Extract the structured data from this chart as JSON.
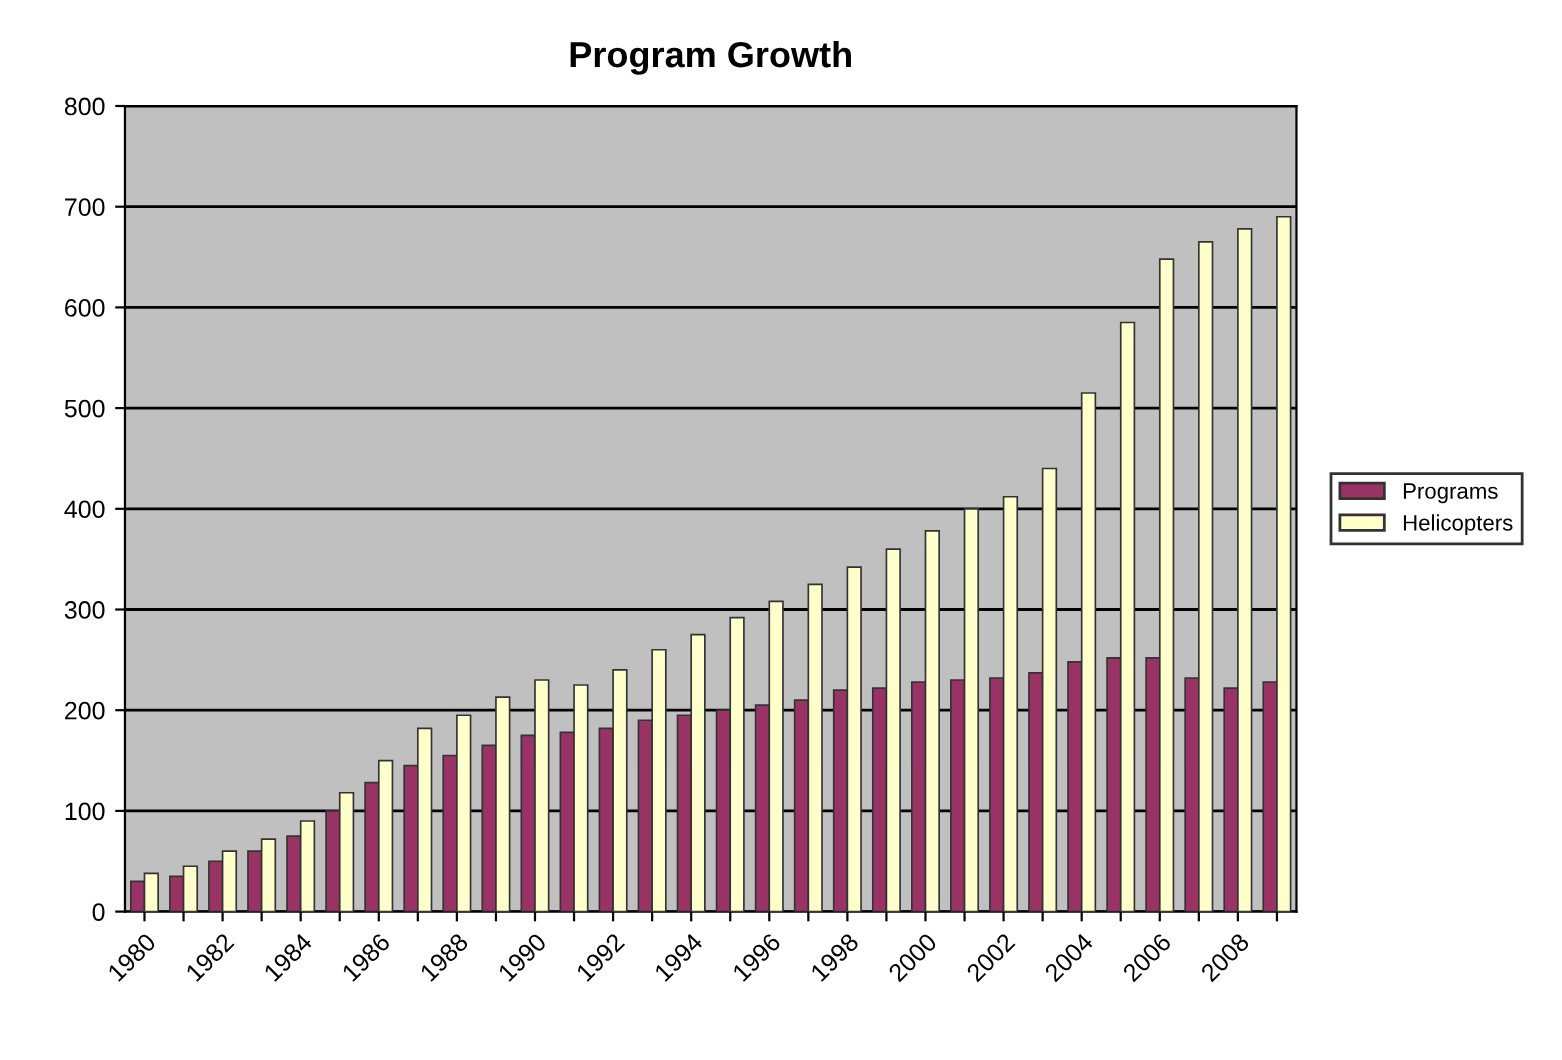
{
  "chart_data": {
    "type": "bar",
    "title": "Program Growth",
    "categories": [
      "1980",
      null,
      "1982",
      null,
      "1984",
      null,
      "1986",
      null,
      "1988",
      null,
      "1990",
      null,
      "1992",
      null,
      "1994",
      null,
      "1996",
      null,
      "1998",
      null,
      "2000",
      null,
      "2002",
      null,
      "2004",
      null,
      "2006",
      null,
      "2008",
      null
    ],
    "series": [
      {
        "name": "Programs",
        "color": "#993366",
        "values": [
          30,
          35,
          50,
          60,
          75,
          100,
          128,
          145,
          155,
          165,
          175,
          178,
          182,
          190,
          195,
          200,
          205,
          210,
          220,
          222,
          228,
          230,
          232,
          237,
          248,
          252,
          252,
          232,
          222,
          228
        ]
      },
      {
        "name": "Helicopters",
        "color": "#ffffcc",
        "values": [
          38,
          45,
          60,
          72,
          90,
          118,
          150,
          182,
          195,
          213,
          230,
          225,
          240,
          260,
          275,
          292,
          308,
          325,
          342,
          360,
          378,
          400,
          412,
          440,
          515,
          585,
          648,
          665,
          678,
          690
        ]
      }
    ],
    "ylim": [
      0,
      800
    ],
    "yticks": [
      0,
      100,
      200,
      300,
      400,
      500,
      600,
      700,
      800
    ],
    "grid": "y",
    "legend": "right"
  }
}
